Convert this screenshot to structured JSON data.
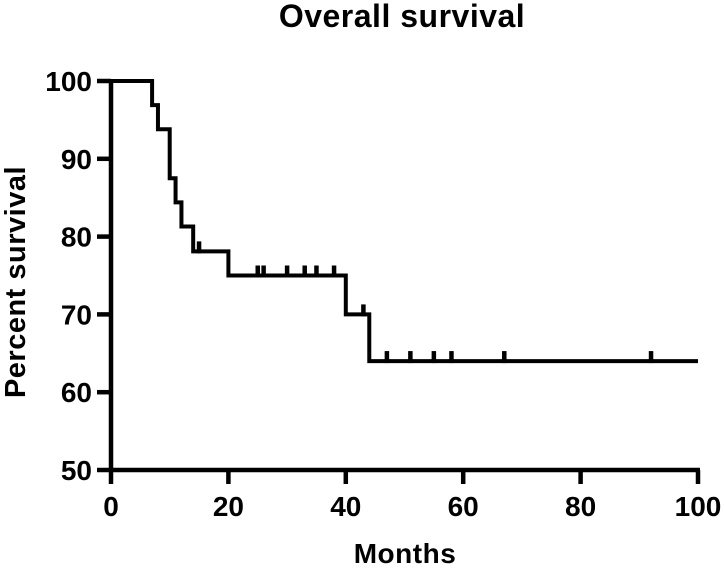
{
  "chart_data": {
    "type": "line",
    "subtype": "kaplan-meier-step-curve",
    "title": "Overall survival",
    "xlabel": "Months",
    "ylabel": "Percent survival",
    "xlim": [
      0,
      100
    ],
    "ylim": [
      50,
      100
    ],
    "x_ticks": [
      0,
      20,
      40,
      60,
      80,
      100
    ],
    "y_ticks": [
      50,
      60,
      70,
      80,
      90,
      100
    ],
    "grid": false,
    "legend": null,
    "line_color": "#000000",
    "background_color": "#ffffff",
    "series": [
      {
        "name": "Overall survival",
        "steps": [
          {
            "t": 0,
            "s": 100
          },
          {
            "t": 7,
            "s": 96.9
          },
          {
            "t": 8,
            "s": 93.8
          },
          {
            "t": 10,
            "s": 87.5
          },
          {
            "t": 11,
            "s": 84.4
          },
          {
            "t": 12,
            "s": 81.3
          },
          {
            "t": 14,
            "s": 78.1
          },
          {
            "t": 20,
            "s": 75
          },
          {
            "t": 40,
            "s": 70
          },
          {
            "t": 44,
            "s": 64
          },
          {
            "t": 100,
            "s": 64
          }
        ],
        "censor_marks": [
          {
            "t": 15,
            "s": 78.1
          },
          {
            "t": 25,
            "s": 75
          },
          {
            "t": 26,
            "s": 75
          },
          {
            "t": 30,
            "s": 75
          },
          {
            "t": 33,
            "s": 75
          },
          {
            "t": 35,
            "s": 75
          },
          {
            "t": 38,
            "s": 75
          },
          {
            "t": 43,
            "s": 70
          },
          {
            "t": 47,
            "s": 64
          },
          {
            "t": 51,
            "s": 64
          },
          {
            "t": 55,
            "s": 64
          },
          {
            "t": 58,
            "s": 64
          },
          {
            "t": 67,
            "s": 64
          },
          {
            "t": 92,
            "s": 64
          }
        ]
      }
    ]
  }
}
